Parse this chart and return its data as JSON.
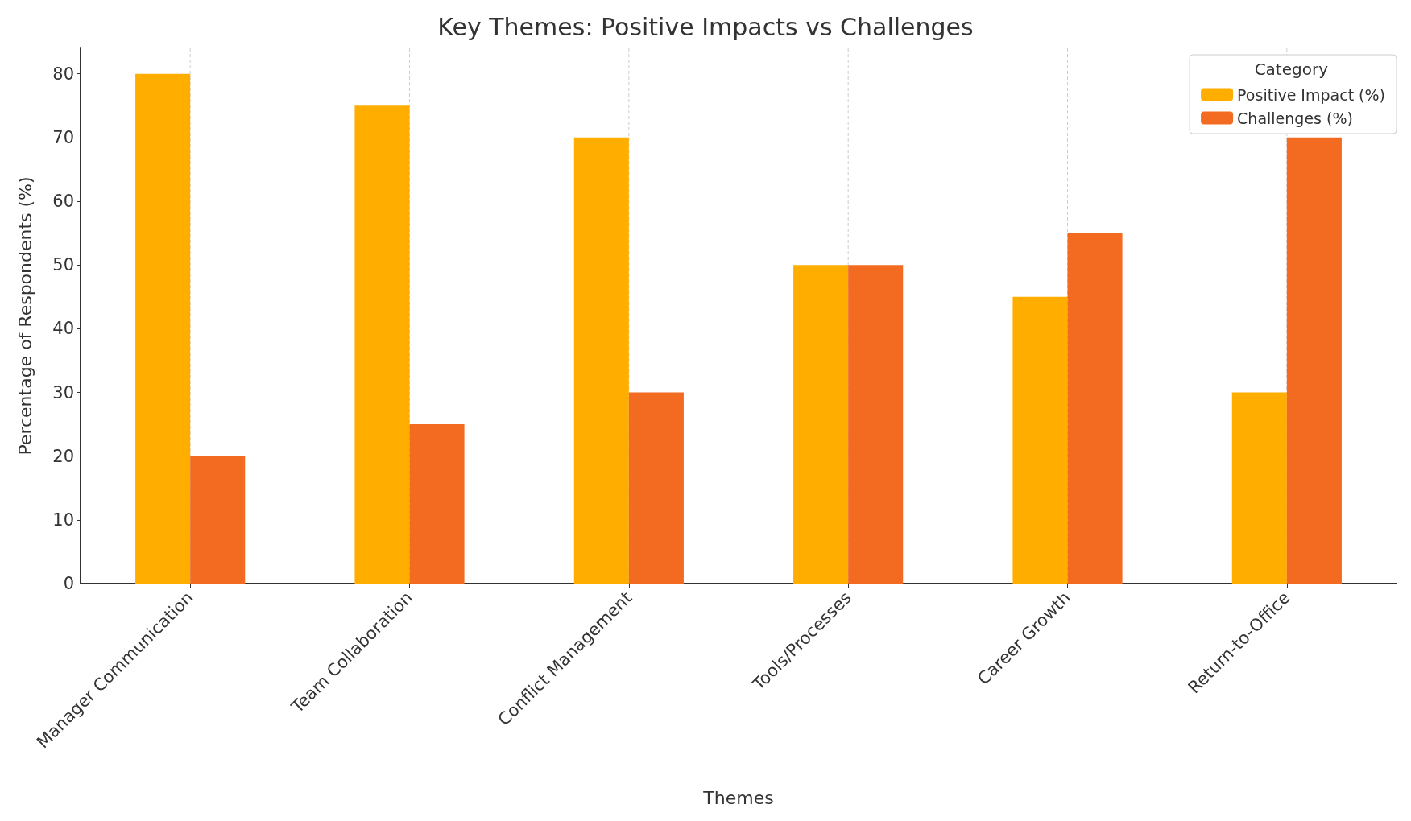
{
  "chart_data": {
    "type": "bar",
    "title": "Key Themes: Positive Impacts vs Challenges",
    "xlabel": "Themes",
    "ylabel": "Percentage of Respondents (%)",
    "legend_title": "Category",
    "categories": [
      "Manager Communication",
      "Team Collaboration",
      "Conflict Management",
      "Tools/Processes",
      "Career Growth",
      "Return-to-Office"
    ],
    "series": [
      {
        "name": "Positive Impact (%)",
        "color": "#ffae00",
        "values": [
          80,
          75,
          70,
          50,
          45,
          30
        ]
      },
      {
        "name": "Challenges (%)",
        "color": "#f26b21",
        "values": [
          20,
          25,
          30,
          50,
          55,
          70
        ]
      }
    ],
    "ylim": [
      0,
      84
    ],
    "yticks": [
      0,
      10,
      20,
      30,
      40,
      50,
      60,
      70,
      80
    ],
    "grid": "x",
    "legend": "top right"
  }
}
